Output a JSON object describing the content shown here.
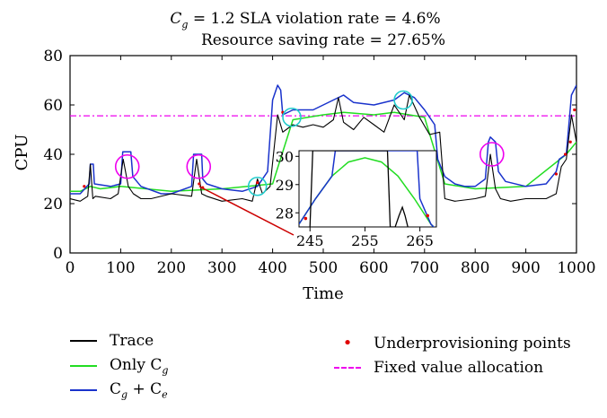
{
  "chart_data": {
    "type": "line",
    "title_line1_label": "C",
    "title_line1_sub": "g",
    "title_line1_rest": " = 1.2    SLA violation rate = 4.6%",
    "title_line2": "Resource saving rate = 27.65%",
    "xlabel": "Time",
    "ylabel": "CPU",
    "xlim": [
      0,
      1000
    ],
    "ylim": [
      0,
      80
    ],
    "xticks": [
      "0",
      "100",
      "200",
      "300",
      "400",
      "500",
      "600",
      "700",
      "800",
      "900",
      "1000"
    ],
    "yticks": [
      "0",
      "20",
      "40",
      "60",
      "80"
    ],
    "fixed_value_allocation": 55.6,
    "series": [
      {
        "name": "Trace",
        "color": "#000000",
        "x": [
          0,
          20,
          35,
          40,
          45,
          50,
          80,
          95,
          105,
          115,
          125,
          140,
          160,
          200,
          240,
          250,
          260,
          270,
          300,
          340,
          360,
          370,
          380,
          395,
          410,
          420,
          440,
          460,
          480,
          500,
          520,
          530,
          540,
          560,
          580,
          600,
          620,
          640,
          660,
          670,
          690,
          710,
          730,
          740,
          760,
          800,
          820,
          830,
          840,
          850,
          870,
          900,
          940,
          960,
          970,
          980,
          990,
          1000
        ],
        "y": [
          22,
          21,
          23,
          36,
          22,
          23,
          22,
          24,
          38,
          27,
          24,
          22,
          22,
          24,
          23,
          38,
          24,
          23,
          21,
          22,
          21,
          30,
          24,
          27,
          56,
          49,
          52,
          51,
          52,
          51,
          54,
          63,
          53,
          50,
          55,
          52,
          49,
          60,
          54,
          64,
          55,
          48,
          49,
          22,
          21,
          22,
          23,
          40,
          26,
          22,
          21,
          22,
          22,
          24,
          35,
          38,
          56,
          45
        ]
      },
      {
        "name": "Only C_g",
        "color": "#22dd22",
        "x": [
          0,
          20,
          40,
          60,
          100,
          200,
          300,
          400,
          440,
          500,
          540,
          600,
          640,
          700,
          740,
          800,
          900,
          980,
          1000
        ],
        "y": [
          25,
          25,
          27,
          26,
          27,
          25,
          26,
          28,
          54,
          56,
          57,
          56,
          57,
          55,
          28,
          26,
          27,
          40,
          45
        ]
      },
      {
        "name": "C_g + C_e",
        "color": "#1a33cc",
        "x": [
          0,
          20,
          38,
          40,
          46,
          48,
          80,
          100,
          104,
          110,
          120,
          124,
          140,
          180,
          200,
          240,
          244,
          250,
          260,
          262,
          270,
          300,
          340,
          370,
          390,
          400,
          410,
          416,
          420,
          440,
          480,
          520,
          540,
          560,
          600,
          640,
          660,
          680,
          700,
          720,
          726,
          740,
          760,
          780,
          800,
          820,
          826,
          830,
          840,
          846,
          860,
          900,
          940,
          960,
          966,
          980,
          990,
          1000
        ],
        "y": [
          24,
          24,
          28,
          36,
          36,
          28,
          27,
          28,
          41,
          41,
          41,
          31,
          27,
          24,
          24,
          27,
          40,
          40,
          40,
          30,
          28,
          26,
          25,
          27,
          33,
          62,
          68,
          66,
          56,
          58,
          58,
          62,
          64,
          61,
          60,
          62,
          65,
          63,
          58,
          52,
          38,
          31,
          28,
          27,
          27,
          30,
          45,
          47,
          45,
          33,
          29,
          27,
          28,
          33,
          38,
          40,
          64,
          68
        ]
      }
    ],
    "underprovisioning_points": [
      [
        28,
        27
      ],
      [
        255,
        28
      ],
      [
        262,
        26.5
      ],
      [
        370,
        28.5
      ],
      [
        420,
        57
      ],
      [
        960,
        32
      ],
      [
        978,
        40
      ],
      [
        988,
        45
      ],
      [
        996,
        58
      ]
    ],
    "circles_magenta": [
      [
        113,
        35
      ],
      [
        254,
        35
      ],
      [
        833,
        40
      ]
    ],
    "circles_cyan": [
      [
        370,
        27
      ],
      [
        438,
        55
      ],
      [
        658,
        62
      ]
    ],
    "inset": {
      "xlim": [
        243,
        268
      ],
      "ylim": [
        27.5,
        30.2
      ],
      "xticks": [
        "245",
        "255",
        "265"
      ],
      "yticks": [
        "28",
        "29",
        "30"
      ],
      "green": {
        "x": [
          243,
          246,
          249,
          252,
          255,
          258,
          261,
          264,
          267,
          268
        ],
        "y": [
          27.6,
          28.5,
          29.3,
          29.8,
          29.95,
          29.8,
          29.3,
          28.5,
          27.6,
          27.4
        ]
      },
      "blue": {
        "x": [
          243,
          246,
          249,
          249.6,
          264.5,
          265,
          267,
          268
        ],
        "y": [
          27.6,
          28.5,
          29.3,
          30.2,
          30.2,
          28.5,
          27.6,
          27.4
        ]
      },
      "black": {
        "x": [
          245,
          245.5,
          246.2,
          258.4,
          259.1,
          259.6,
          260.5,
          261.2,
          261.8,
          262.3,
          262.8
        ],
        "y": [
          27.5,
          30.2,
          30.2,
          30.2,
          30.2,
          27.5,
          27.5,
          27.9,
          28.2,
          27.9,
          27.5
        ]
      }
    },
    "legend": [
      {
        "label": "Trace"
      },
      {
        "label": "Only C",
        "sub": "g"
      },
      {
        "label": "C",
        "sub": "g",
        "mid": " + C",
        "sub2": "e"
      },
      {
        "label": "Underprovisioning points"
      },
      {
        "label": "Fixed value allocation"
      }
    ]
  }
}
